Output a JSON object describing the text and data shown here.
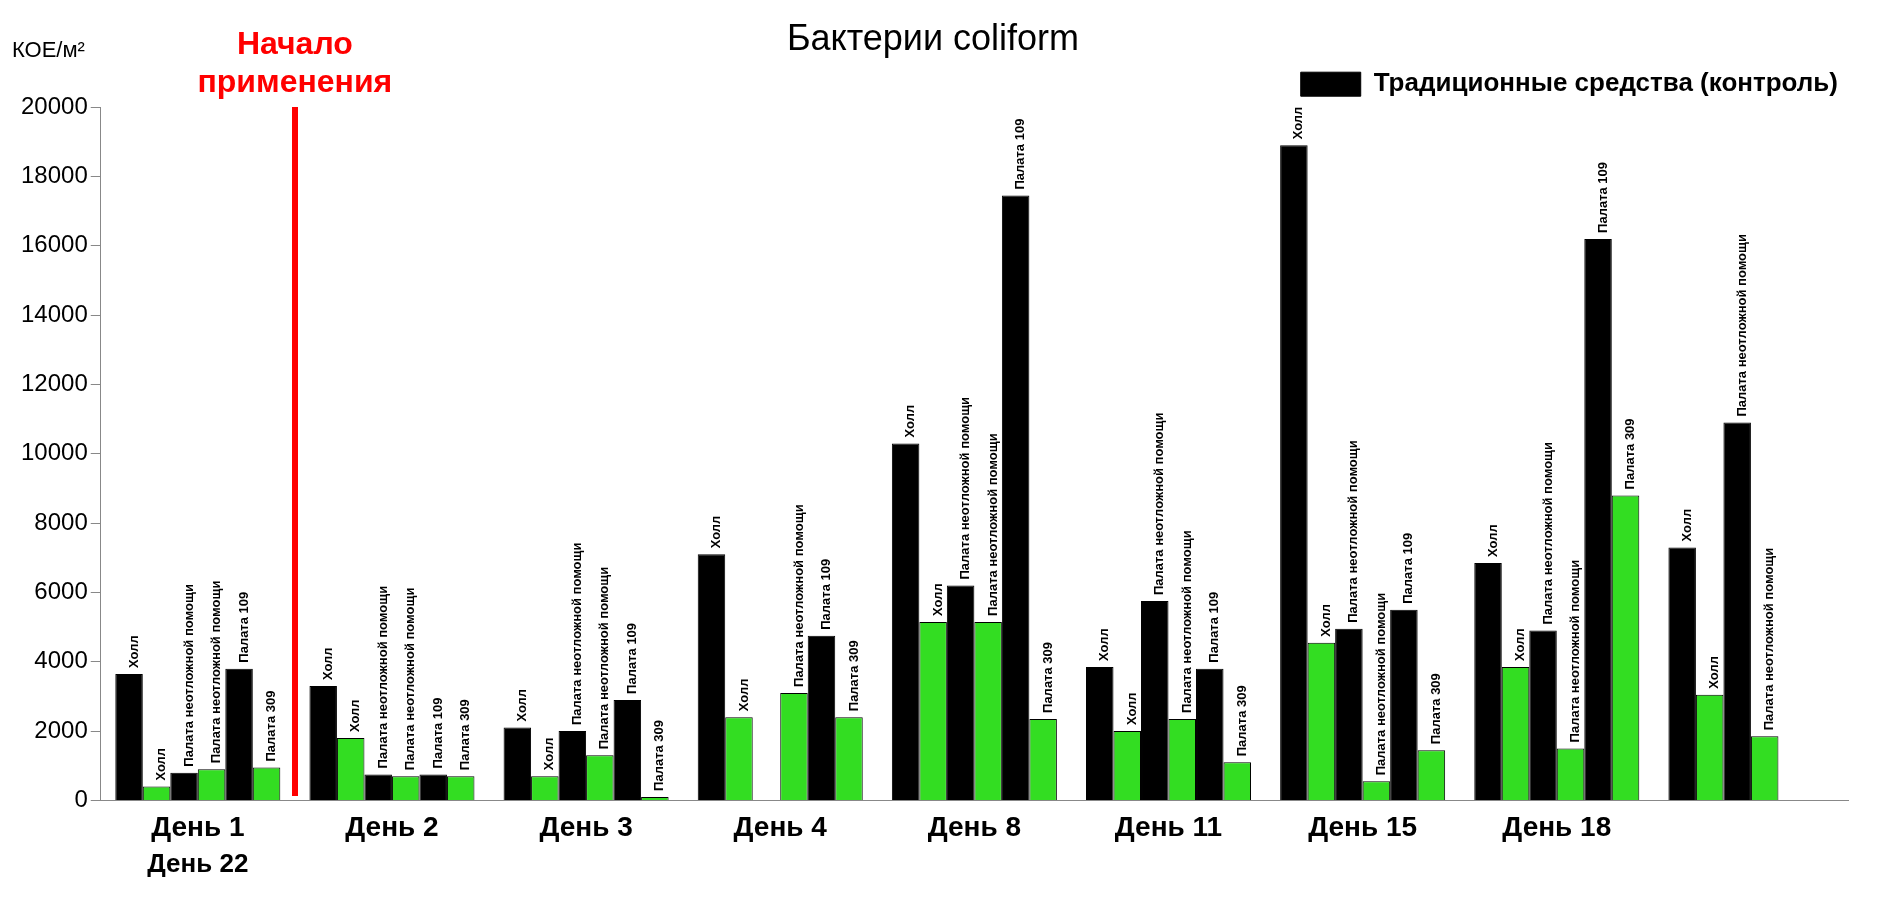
{
  "chart_data": {
    "type": "bar",
    "title": "Бактерии coliform",
    "ylabel": "КОЕ/м²",
    "categories": [
      "День 1",
      "День 2",
      "День 3",
      "День 4",
      "День 8",
      "День 11",
      "День 15",
      "День 18",
      null
    ],
    "series": [
      {
        "name": "Традиционные средства (контроль)",
        "color": "#000000",
        "values": [
          3650,
          3300,
          2100,
          7100,
          10300,
          3850,
          18900,
          6850,
          7300
        ],
        "value_labels": [
          "Холл",
          "Холл",
          "Холл",
          "Холл",
          "Холл",
          "Холл",
          "Холл",
          "Холл",
          "Холл"
        ]
      },
      {
        "color": "#33dd22",
        "values": [
          400,
          1800,
          700,
          2400,
          5150,
          2000,
          4550,
          3850,
          3050
        ],
        "value_labels": [
          "Холл",
          "Холл",
          "Холл",
          "Холл",
          "Холл",
          "Холл",
          "Холл",
          "Холл",
          "Холл"
        ]
      },
      {
        "color": "#000000",
        "values": [
          800,
          750,
          2000,
          null,
          6200,
          5750,
          4950,
          4900,
          10900
        ],
        "value_labels": [
          "Палата неотложной помощи",
          "Палата неотложной помощи",
          "Палата неотложной помощи",
          null,
          "Палата неотложной помощи",
          "Палата неотложной помощи",
          "Палата неотложной помощи",
          "Палата неотложной помощи",
          "Палата неотложной помощи"
        ]
      },
      {
        "color": "#33dd22",
        "values": [
          900,
          700,
          1300,
          3100,
          5150,
          2350,
          550,
          1500,
          1850
        ],
        "value_labels": [
          "Палата неотложной помощи",
          "Палата неотложной помощи",
          "Палата неотложной помощи",
          "Палата неотложной помощи",
          "Палата неотложной помощи",
          "Палата неотложной помощи",
          "Палата неотложной помощи",
          "Палата неотложной помощи",
          "Палата неотложной помощи"
        ]
      },
      {
        "color": "#000000",
        "values": [
          3800,
          750,
          2900,
          4750,
          17450,
          3800,
          5500,
          16200,
          null
        ],
        "value_labels": [
          "Палата 109",
          "Палата 109",
          "Палата 109",
          "Палата 109",
          "Палата 109",
          "Палата 109",
          "Палата 109",
          "Палата 109",
          null
        ]
      },
      {
        "color": "#33dd22",
        "values": [
          950,
          700,
          100,
          2400,
          2350,
          1100,
          1450,
          8800,
          null
        ],
        "value_labels": [
          "Палата 309",
          "Палата 309",
          "Палата 309",
          "Палата 309",
          "Палата 309",
          "Палата 309",
          "Палата 309",
          "Палата 309",
          null
        ]
      }
    ],
    "ylim": [
      0,
      20000
    ],
    "yticks": [
      0,
      2000,
      4000,
      6000,
      8000,
      10000,
      12000,
      14000,
      16000,
      18000,
      20000
    ],
    "annotations": [
      "Начало применения",
      "День 22"
    ],
    "grid": false,
    "legend": "top right"
  }
}
